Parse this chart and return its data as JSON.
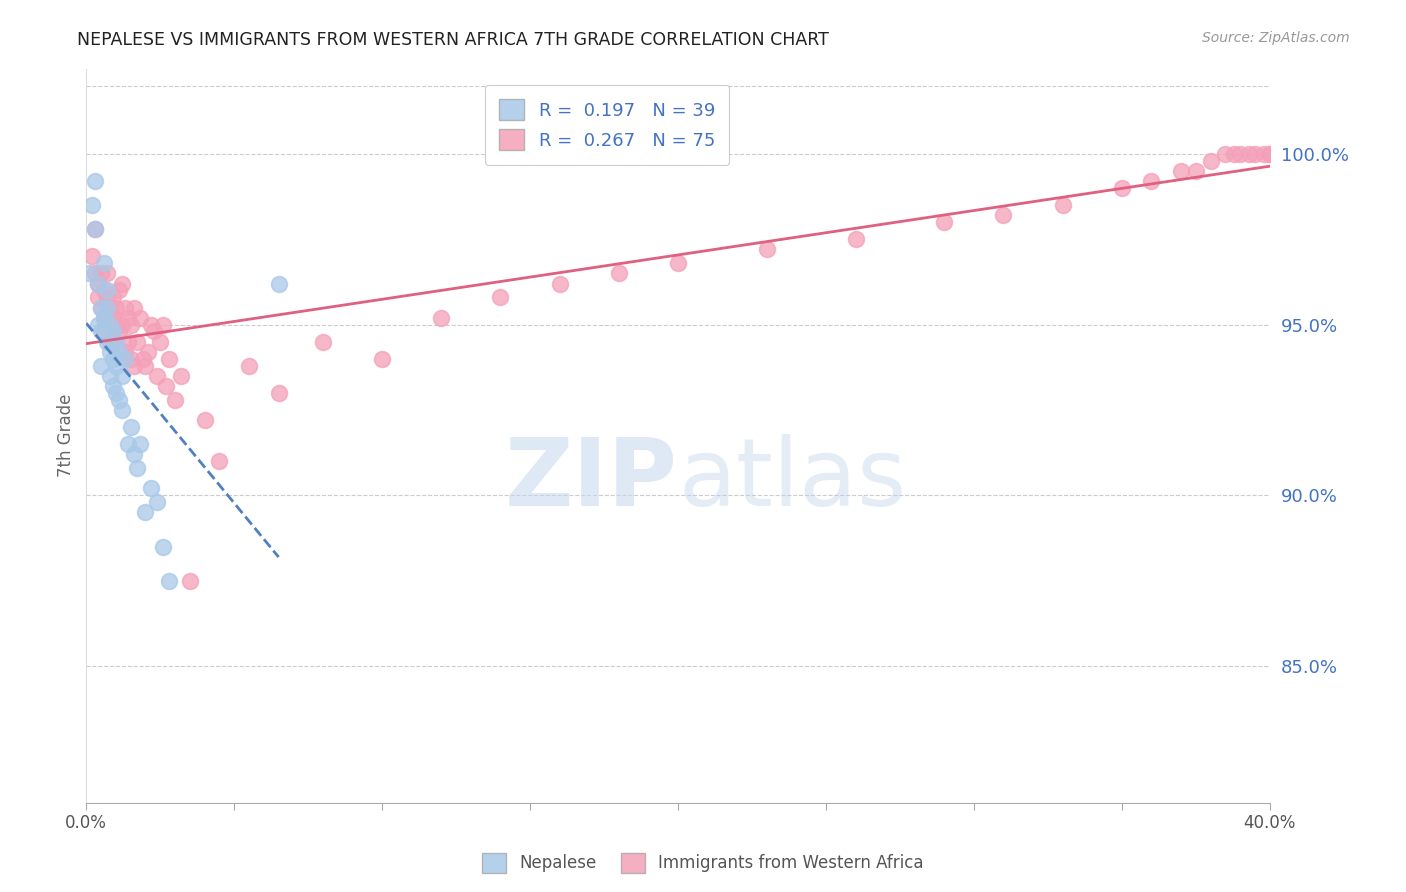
{
  "title": "NEPALESE VS IMMIGRANTS FROM WESTERN AFRICA 7TH GRADE CORRELATION CHART",
  "source": "Source: ZipAtlas.com",
  "ylabel": "7th Grade",
  "right_yticks": [
    85.0,
    90.0,
    95.0,
    100.0
  ],
  "right_ytick_labels": [
    "85.0%",
    "90.0%",
    "95.0%",
    "100.0%"
  ],
  "x_range": [
    0.0,
    0.4
  ],
  "y_range": [
    81.0,
    102.5
  ],
  "nepalese_color": "#a8c8e8",
  "western_africa_color": "#f4a0b8",
  "trendline_nepalese_color": "#5080c0",
  "trendline_nepalese_style": "--",
  "trendline_western_africa_color": "#e06080",
  "trendline_western_africa_style": "-",
  "watermark_zip": "ZIP",
  "watermark_atlas": "atlas",
  "nepalese_x": [
    0.001,
    0.002,
    0.003,
    0.003,
    0.004,
    0.004,
    0.005,
    0.005,
    0.005,
    0.006,
    0.006,
    0.007,
    0.007,
    0.007,
    0.008,
    0.008,
    0.008,
    0.009,
    0.009,
    0.009,
    0.01,
    0.01,
    0.01,
    0.011,
    0.011,
    0.012,
    0.012,
    0.013,
    0.014,
    0.015,
    0.016,
    0.017,
    0.018,
    0.02,
    0.022,
    0.024,
    0.026,
    0.028,
    0.065
  ],
  "nepalese_y": [
    96.5,
    98.5,
    99.2,
    97.8,
    96.2,
    95.0,
    94.8,
    95.5,
    93.8,
    96.8,
    95.2,
    96.0,
    95.5,
    94.5,
    95.0,
    94.2,
    93.5,
    94.8,
    94.0,
    93.2,
    94.5,
    93.8,
    93.0,
    94.2,
    92.8,
    93.5,
    92.5,
    94.0,
    91.5,
    92.0,
    91.2,
    90.8,
    91.5,
    89.5,
    90.2,
    89.8,
    88.5,
    87.5,
    96.2
  ],
  "western_africa_x": [
    0.002,
    0.003,
    0.003,
    0.004,
    0.004,
    0.005,
    0.005,
    0.006,
    0.006,
    0.006,
    0.007,
    0.007,
    0.008,
    0.008,
    0.009,
    0.009,
    0.009,
    0.01,
    0.01,
    0.011,
    0.011,
    0.012,
    0.012,
    0.013,
    0.013,
    0.014,
    0.014,
    0.015,
    0.015,
    0.016,
    0.016,
    0.017,
    0.018,
    0.019,
    0.02,
    0.021,
    0.022,
    0.023,
    0.024,
    0.025,
    0.026,
    0.027,
    0.028,
    0.03,
    0.032,
    0.035,
    0.04,
    0.045,
    0.055,
    0.065,
    0.08,
    0.1,
    0.12,
    0.14,
    0.16,
    0.18,
    0.2,
    0.23,
    0.26,
    0.29,
    0.31,
    0.33,
    0.35,
    0.36,
    0.37,
    0.375,
    0.38,
    0.385,
    0.388,
    0.39,
    0.393,
    0.395,
    0.398,
    0.4,
    0.4
  ],
  "western_africa_y": [
    97.0,
    96.5,
    97.8,
    96.2,
    95.8,
    96.5,
    95.5,
    96.0,
    95.2,
    94.8,
    96.5,
    95.8,
    95.5,
    94.5,
    95.8,
    95.2,
    94.5,
    95.5,
    95.0,
    96.0,
    94.8,
    95.0,
    96.2,
    95.5,
    94.2,
    95.2,
    94.5,
    95.0,
    94.0,
    95.5,
    93.8,
    94.5,
    95.2,
    94.0,
    93.8,
    94.2,
    95.0,
    94.8,
    93.5,
    94.5,
    95.0,
    93.2,
    94.0,
    92.8,
    93.5,
    87.5,
    92.2,
    91.0,
    93.8,
    93.0,
    94.5,
    94.0,
    95.2,
    95.8,
    96.2,
    96.5,
    96.8,
    97.2,
    97.5,
    98.0,
    98.2,
    98.5,
    99.0,
    99.2,
    99.5,
    99.5,
    99.8,
    100.0,
    100.0,
    100.0,
    100.0,
    100.0,
    100.0,
    100.0,
    100.0
  ]
}
